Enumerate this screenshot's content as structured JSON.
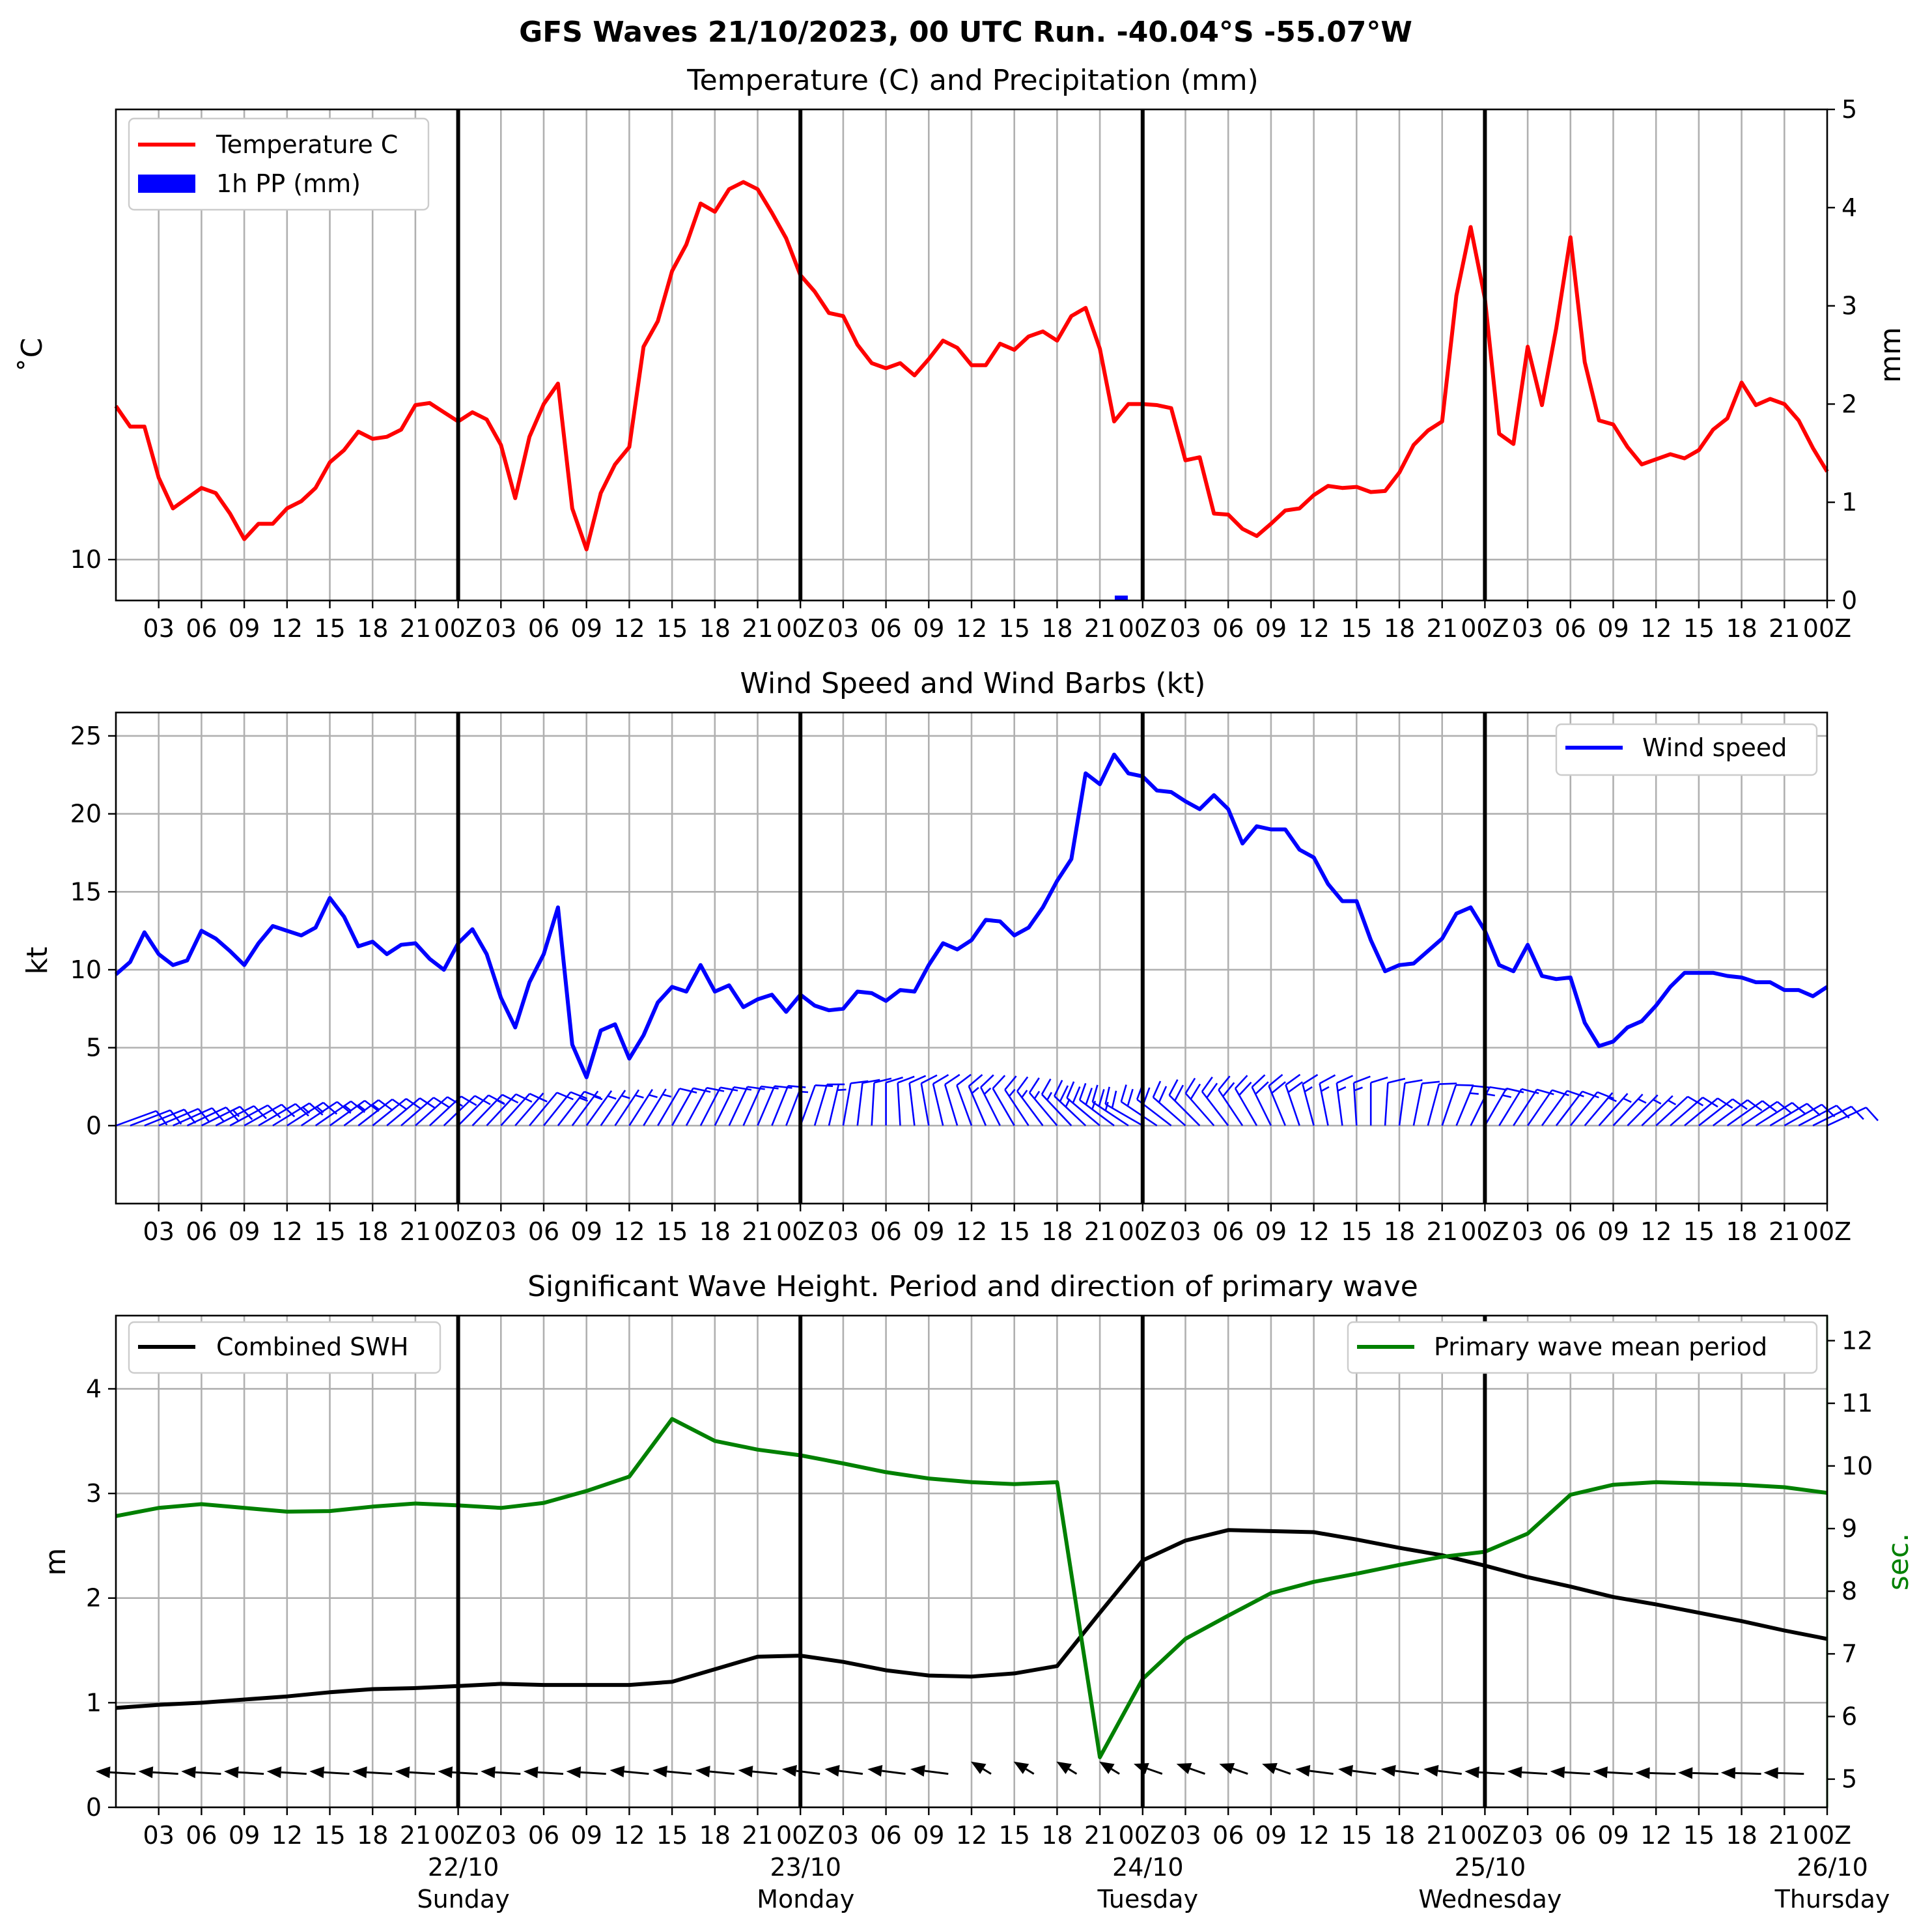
{
  "figure": {
    "title": "GFS Waves 21/10/2023, 00 UTC Run. -40.04°S -55.07°W"
  },
  "hour_ticks": [
    "03",
    "06",
    "09",
    "12",
    "15",
    "18",
    "21",
    "00Z",
    "03",
    "06",
    "09",
    "12",
    "15",
    "18",
    "21",
    "00Z",
    "03",
    "06",
    "09",
    "12",
    "15",
    "18",
    "21",
    "00Z",
    "03",
    "06",
    "09",
    "12",
    "15",
    "18",
    "21",
    "00Z",
    "03",
    "06",
    "09",
    "12",
    "15",
    "18",
    "21",
    "00Z"
  ],
  "day_labels": [
    {
      "date": "22/10",
      "day": "Sunday"
    },
    {
      "date": "23/10",
      "day": "Monday"
    },
    {
      "date": "24/10",
      "day": "Tuesday"
    },
    {
      "date": "25/10",
      "day": "Wednesday"
    },
    {
      "date": "26/10",
      "day": "Thursday"
    }
  ],
  "colors": {
    "temperature": "#ff0000",
    "precipitation": "#0000ff",
    "wind": "#0000ff",
    "swh": "#000000",
    "period": "#008000"
  },
  "chart_data": [
    {
      "type": "line",
      "title": "Temperature (C) and Precipitation (mm)",
      "ylabel": "$^\\circ$C",
      "ylabel_display": "˚C",
      "y2label": "mm",
      "x_range_hours": [
        0,
        120
      ],
      "ylim": [
        9.6,
        14.4
      ],
      "yticks": [
        10
      ],
      "y2lim": [
        0,
        5
      ],
      "y2ticks": [
        0,
        1,
        2,
        3,
        4,
        5
      ],
      "legend": "top-left",
      "legend_entries": [
        "Temperature C",
        "1h PP (mm)"
      ],
      "series": [
        {
          "name": "Temperature C",
          "x_hours": [
            0,
            1,
            2,
            3,
            4,
            5,
            6,
            7,
            8,
            9,
            10,
            11,
            12,
            13,
            14,
            15,
            16,
            17,
            18,
            19,
            20,
            21,
            22,
            23,
            24,
            25,
            26,
            27,
            28,
            29,
            30,
            31,
            32,
            33,
            34,
            35,
            36,
            37,
            38,
            39,
            40,
            41,
            42,
            43,
            44,
            45,
            46,
            47,
            48,
            49,
            50,
            51,
            52,
            53,
            54,
            55,
            56,
            57,
            58,
            59,
            60,
            61,
            62,
            63,
            64,
            65,
            66,
            67,
            68,
            69,
            70,
            71,
            72,
            73,
            74,
            75,
            76,
            77,
            78,
            79,
            80,
            81,
            82,
            83,
            84,
            85,
            86,
            87,
            88,
            89,
            90,
            91,
            92,
            93,
            94,
            95,
            96,
            97,
            98,
            99,
            100,
            101,
            102,
            103,
            104,
            105,
            106,
            107,
            108,
            109,
            110,
            111,
            112,
            113,
            114,
            115,
            116,
            117,
            118,
            119,
            120
          ],
          "values": [
            11.5,
            11.3,
            11.3,
            10.8,
            10.5,
            10.6,
            10.7,
            10.65,
            10.45,
            10.2,
            10.35,
            10.35,
            10.5,
            10.57,
            10.7,
            10.95,
            11.07,
            11.25,
            11.18,
            11.2,
            11.27,
            11.51,
            11.53,
            11.44,
            11.35,
            11.44,
            11.37,
            11.12,
            10.6,
            11.2,
            11.52,
            11.72,
            10.5,
            10.1,
            10.65,
            10.93,
            11.1,
            12.08,
            12.33,
            12.82,
            13.08,
            13.48,
            13.4,
            13.62,
            13.69,
            13.62,
            13.39,
            13.14,
            12.78,
            12.62,
            12.41,
            12.38,
            12.1,
            11.92,
            11.87,
            11.92,
            11.8,
            11.96,
            12.14,
            12.07,
            11.9,
            11.9,
            12.11,
            12.05,
            12.18,
            12.23,
            12.14,
            12.38,
            12.46,
            12.06,
            11.35,
            11.52,
            11.52,
            11.51,
            11.48,
            10.97,
            11.0,
            10.45,
            10.44,
            10.3,
            10.23,
            10.35,
            10.48,
            10.5,
            10.63,
            10.72,
            10.7,
            10.71,
            10.66,
            10.67,
            10.85,
            11.12,
            11.26,
            11.35,
            12.58,
            13.25,
            12.55,
            11.23,
            11.13,
            12.08,
            11.51,
            12.26,
            13.15,
            11.93,
            11.36,
            11.32,
            11.1,
            10.93,
            10.98,
            11.03,
            10.99,
            11.07,
            11.27,
            11.38,
            11.73,
            11.51,
            11.57,
            11.52,
            11.36,
            11.09,
            10.86
          ]
        },
        {
          "name": "1h PP (mm)",
          "x_hours": [
            70.5
          ],
          "values": [
            0.05
          ]
        }
      ]
    },
    {
      "type": "line",
      "title": "Wind Speed and Wind Barbs (kt)",
      "ylabel": "kt",
      "x_range_hours": [
        0,
        120
      ],
      "ylim": [
        -5,
        26.5
      ],
      "yticks": [
        0,
        5,
        10,
        15,
        20,
        25
      ],
      "legend": "top-right",
      "legend_entries": [
        "Wind speed"
      ],
      "series": [
        {
          "name": "Wind speed",
          "x_hours": [
            0,
            1,
            2,
            3,
            4,
            5,
            6,
            7,
            8,
            9,
            10,
            11,
            12,
            13,
            14,
            15,
            16,
            17,
            18,
            19,
            20,
            21,
            22,
            23,
            24,
            25,
            26,
            27,
            28,
            29,
            30,
            31,
            32,
            33,
            34,
            35,
            36,
            37,
            38,
            39,
            40,
            41,
            42,
            43,
            44,
            45,
            46,
            47,
            48,
            49,
            50,
            51,
            52,
            53,
            54,
            55,
            56,
            57,
            58,
            59,
            60,
            61,
            62,
            63,
            64,
            65,
            66,
            67,
            68,
            69,
            70,
            71,
            72,
            73,
            74,
            75,
            76,
            77,
            78,
            79,
            80,
            81,
            82,
            83,
            84,
            85,
            86,
            87,
            88,
            89,
            90,
            91,
            92,
            93,
            94,
            95,
            96,
            97,
            98,
            99,
            100,
            101,
            102,
            103,
            104,
            105,
            106,
            107,
            108,
            109,
            110,
            111,
            112,
            113,
            114,
            115,
            116,
            117,
            118,
            119,
            120
          ],
          "values": [
            9.7,
            10.5,
            12.4,
            11.0,
            10.3,
            10.6,
            12.5,
            12.0,
            11.2,
            10.3,
            11.7,
            12.8,
            12.5,
            12.2,
            12.7,
            14.6,
            13.4,
            11.5,
            11.8,
            11.0,
            11.6,
            11.7,
            10.7,
            10.0,
            11.7,
            12.6,
            11.0,
            8.2,
            6.3,
            9.2,
            11.0,
            14.0,
            5.2,
            3.1,
            6.1,
            6.5,
            4.3,
            5.8,
            7.9,
            8.9,
            8.6,
            10.3,
            8.6,
            9.0,
            7.6,
            8.1,
            8.4,
            7.3,
            8.4,
            7.7,
            7.4,
            7.5,
            8.6,
            8.5,
            8.0,
            8.7,
            8.6,
            10.3,
            11.7,
            11.3,
            11.9,
            13.2,
            13.1,
            12.2,
            12.7,
            14.0,
            15.7,
            17.1,
            22.6,
            21.9,
            23.8,
            22.6,
            22.4,
            21.5,
            21.4,
            20.8,
            20.3,
            21.2,
            20.3,
            18.1,
            19.2,
            19.0,
            19.0,
            17.7,
            17.2,
            15.5,
            14.4,
            14.4,
            11.9,
            9.9,
            10.3,
            10.4,
            11.2,
            12.0,
            13.6,
            14.0,
            12.5,
            10.3,
            9.9,
            11.6,
            9.6,
            9.4,
            9.5,
            6.6,
            5.1,
            5.4,
            6.3,
            6.7,
            7.7,
            8.9,
            9.8,
            9.8,
            9.8,
            9.6,
            9.5,
            9.2,
            9.2,
            8.7,
            8.7,
            8.3,
            8.9
          ]
        }
      ],
      "barb_direction_hours": [
        0,
        48,
        72,
        96,
        120
      ],
      "barb_direction_deg": [
        250,
        200,
        120,
        210,
        245
      ]
    },
    {
      "type": "line",
      "title": "Significant Wave Height. Period and direction of primary wave",
      "ylabel": "m",
      "y2label": "sec.",
      "x_range_hours": [
        0,
        120
      ],
      "ylim": [
        0,
        4.7
      ],
      "yticks": [
        0,
        1,
        2,
        3,
        4
      ],
      "y2lim": [
        4.55,
        12.4
      ],
      "y2ticks": [
        5,
        6,
        7,
        8,
        9,
        10,
        11,
        12
      ],
      "legend": "top-left / top-right",
      "legend_entries": [
        "Combined SWH",
        "Primary wave mean period"
      ],
      "series": [
        {
          "name": "Combined SWH",
          "x_hours": [
            0,
            3,
            6,
            9,
            12,
            15,
            18,
            21,
            24,
            27,
            30,
            33,
            36,
            39,
            42,
            45,
            48,
            51,
            54,
            57,
            60,
            63,
            66,
            69,
            72,
            75,
            78,
            81,
            84,
            87,
            90,
            93,
            96,
            99,
            102,
            105,
            108,
            111,
            114,
            117,
            120
          ],
          "values": [
            0.95,
            0.98,
            1.0,
            1.03,
            1.06,
            1.1,
            1.13,
            1.14,
            1.16,
            1.18,
            1.17,
            1.17,
            1.17,
            1.2,
            1.32,
            1.44,
            1.45,
            1.39,
            1.31,
            1.26,
            1.25,
            1.28,
            1.35,
            1.86,
            2.36,
            2.55,
            2.65,
            2.64,
            2.63,
            2.56,
            2.48,
            2.41,
            2.31,
            2.2,
            2.11,
            2.01,
            1.94,
            1.86,
            1.78,
            1.69,
            1.61
          ]
        },
        {
          "name": "Primary wave mean period",
          "x_hours": [
            0,
            3,
            6,
            9,
            12,
            15,
            18,
            21,
            24,
            27,
            30,
            33,
            36,
            39,
            42,
            45,
            48,
            51,
            54,
            57,
            60,
            63,
            66,
            69,
            72,
            75,
            78,
            81,
            84,
            87,
            90,
            93,
            96,
            99,
            102,
            105,
            108,
            111,
            114,
            117,
            120
          ],
          "values": [
            9.2,
            9.33,
            9.39,
            9.33,
            9.27,
            9.28,
            9.35,
            9.4,
            9.37,
            9.33,
            9.41,
            9.6,
            9.83,
            10.75,
            10.4,
            10.26,
            10.17,
            10.04,
            9.9,
            9.8,
            9.74,
            9.71,
            9.74,
            5.35,
            6.6,
            7.24,
            7.61,
            7.97,
            8.15,
            8.28,
            8.42,
            8.55,
            8.63,
            8.92,
            9.54,
            9.7,
            9.74,
            9.72,
            9.7,
            9.66,
            9.57
          ]
        }
      ],
      "arrow_direction_deg": [
        280,
        280,
        280,
        285,
        290,
        330,
        315,
        290,
        280,
        275,
        270
      ]
    }
  ]
}
